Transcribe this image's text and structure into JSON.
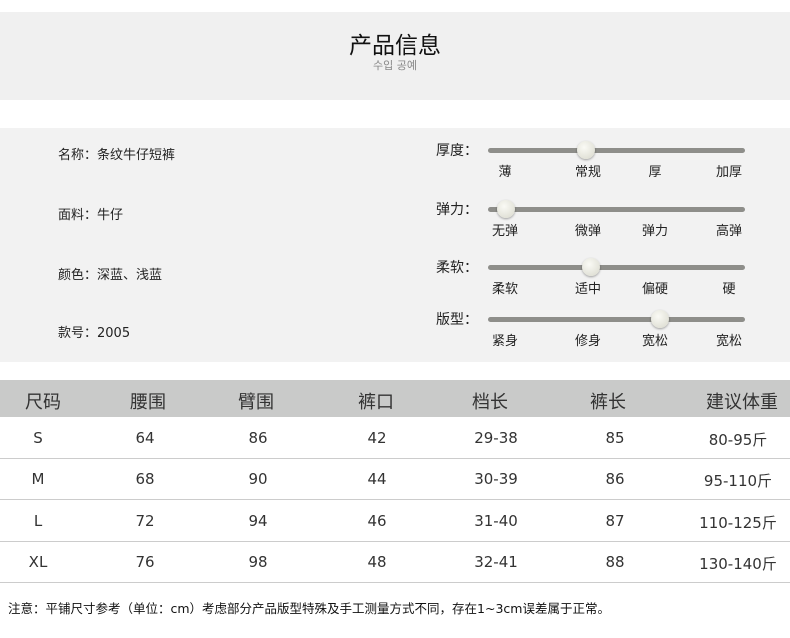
{
  "header": {
    "title": "产品信息",
    "subtitle": "수입 공예"
  },
  "info": {
    "fields": [
      "名称：条纹牛仔短裤",
      "面料：牛仔",
      "颜色：深蓝、浅蓝",
      "款号：2005"
    ],
    "sliders": [
      {
        "label": "厚度：",
        "ticks": [
          "薄",
          "常规",
          "厚",
          "加厚"
        ],
        "value": 0.38
      },
      {
        "label": "弹力：",
        "ticks": [
          "无弹",
          "微弹",
          "弹力",
          "高弹"
        ],
        "value": 0.07
      },
      {
        "label": "柔软：",
        "ticks": [
          "柔软",
          "适中",
          "偏硬",
          "硬"
        ],
        "value": 0.4
      },
      {
        "label": "版型：",
        "ticks": [
          "紧身",
          "修身",
          "宽松",
          "宽松"
        ],
        "value": 0.67
      }
    ]
  },
  "table": {
    "headers": [
      "尺码",
      "腰围",
      "臂围",
      "裤口",
      "档长",
      "裤长",
      "建议体重"
    ],
    "rows": [
      [
        "S",
        "64",
        "86",
        "42",
        "29-38",
        "85",
        "80-95斤"
      ],
      [
        "M",
        "68",
        "90",
        "44",
        "30-39",
        "86",
        "95-110斤"
      ],
      [
        "L",
        "72",
        "94",
        "46",
        "31-40",
        "87",
        "110-125斤"
      ],
      [
        "XL",
        "76",
        "98",
        "48",
        "32-41",
        "88",
        "130-140斤"
      ]
    ]
  },
  "note": "注意：平铺尺寸参考（单位：cm）考虑部分产品版型特殊及手工测量方式不同，存在1~3cm误差属于正常。"
}
